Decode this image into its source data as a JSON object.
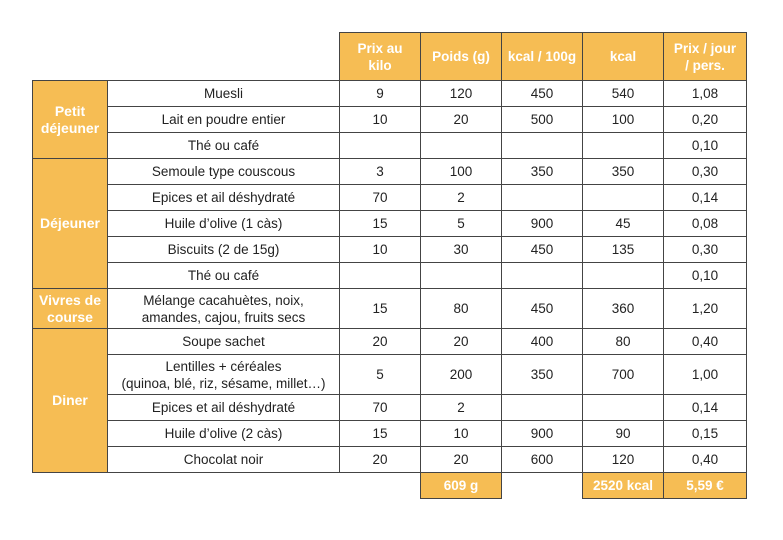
{
  "headers": {
    "price_kilo": "Prix au kilo",
    "weight": "Poids (g)",
    "kcal100": "kcal / 100g",
    "kcal": "kcal",
    "price_day_1": "Prix / jour",
    "price_day_2": "/ pers."
  },
  "colors": {
    "accent": "#f6bd54",
    "border": "#444444",
    "text": "#222222"
  },
  "categories": [
    {
      "label_lines": [
        "Petit",
        "déjeuner"
      ]
    },
    {
      "label_lines": [
        "Déjeuner"
      ]
    },
    {
      "label_lines": [
        "Vivres de",
        "course"
      ]
    },
    {
      "label_lines": [
        "Diner"
      ]
    }
  ],
  "rows": [
    {
      "item": [
        "Muesli"
      ],
      "price_kilo": "9",
      "weight": "120",
      "kcal100": "450",
      "kcal": "540",
      "price_day": "1,08"
    },
    {
      "item": [
        "Lait en poudre entier"
      ],
      "price_kilo": "10",
      "weight": "20",
      "kcal100": "500",
      "kcal": "100",
      "price_day": "0,20"
    },
    {
      "item": [
        "Thé ou café"
      ],
      "price_kilo": "",
      "weight": "",
      "kcal100": "",
      "kcal": "",
      "price_day": "0,10"
    },
    {
      "item": [
        "Semoule type couscous"
      ],
      "price_kilo": "3",
      "weight": "100",
      "kcal100": "350",
      "kcal": "350",
      "price_day": "0,30"
    },
    {
      "item": [
        "Epices et ail déshydraté"
      ],
      "price_kilo": "70",
      "weight": "2",
      "kcal100": "",
      "kcal": "",
      "price_day": "0,14"
    },
    {
      "item": [
        "Huile d’olive (1 càs)"
      ],
      "price_kilo": "15",
      "weight": "5",
      "kcal100": "900",
      "kcal": "45",
      "price_day": "0,08"
    },
    {
      "item": [
        "Biscuits (2 de 15g)"
      ],
      "price_kilo": "10",
      "weight": "30",
      "kcal100": "450",
      "kcal": "135",
      "price_day": "0,30"
    },
    {
      "item": [
        "Thé ou café"
      ],
      "price_kilo": "",
      "weight": "",
      "kcal100": "",
      "kcal": "",
      "price_day": "0,10"
    },
    {
      "item": [
        "Mélange cacahuètes, noix,",
        "amandes,  cajou, fruits secs"
      ],
      "price_kilo": "15",
      "weight": "80",
      "kcal100": "450",
      "kcal": "360",
      "price_day": "1,20"
    },
    {
      "item": [
        "Soupe sachet"
      ],
      "price_kilo": "20",
      "weight": "20",
      "kcal100": "400",
      "kcal": "80",
      "price_day": "0,40"
    },
    {
      "item": [
        "Lentilles + céréales",
        "(quinoa, blé, riz, sésame, millet…)"
      ],
      "price_kilo": "5",
      "weight": "200",
      "kcal100": "350",
      "kcal": "700",
      "price_day": "1,00"
    },
    {
      "item": [
        "Epices et ail déshydraté"
      ],
      "price_kilo": "70",
      "weight": "2",
      "kcal100": "",
      "kcal": "",
      "price_day": "0,14"
    },
    {
      "item": [
        "Huile d’olive (2 càs)"
      ],
      "price_kilo": "15",
      "weight": "10",
      "kcal100": "900",
      "kcal": "90",
      "price_day": "0,15"
    },
    {
      "item": [
        "Chocolat noir"
      ],
      "price_kilo": "20",
      "weight": "20",
      "kcal100": "600",
      "kcal": "120",
      "price_day": "0,40"
    }
  ],
  "totals": {
    "weight": "609 g",
    "kcal": "2520 kcal",
    "price_day": "5,59 €"
  }
}
